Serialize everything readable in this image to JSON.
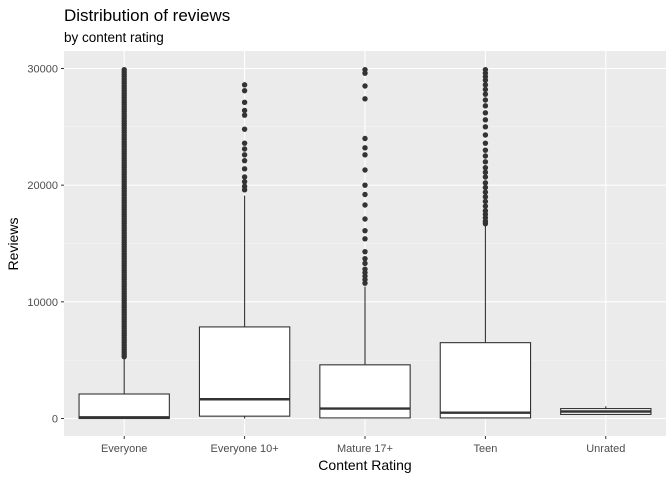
{
  "chart_data": {
    "type": "box",
    "title": "Distribution of reviews",
    "subtitle": "by content rating",
    "xlabel": "Content Rating",
    "ylabel": "Reviews",
    "ylim": [
      -1500,
      31500
    ],
    "y_ticks": [
      0,
      10000,
      20000,
      30000
    ],
    "y_tick_labels": [
      "0",
      "10000",
      "20000",
      "30000"
    ],
    "categories": [
      "Everyone",
      "Everyone 10+",
      "Mature 17+",
      "Teen",
      "Unrated"
    ],
    "grid": true,
    "legend": "none",
    "colors": {
      "panel": "#ebebeb",
      "grid_major": "#ffffff",
      "grid_minor": "#f5f5f5",
      "box_fill": "#ffffff",
      "box_line": "#333333",
      "outlier": "#333333"
    },
    "boxes": [
      {
        "category": "Everyone",
        "q1": 0,
        "median": 100,
        "q3": 2100,
        "whisker_low": 0,
        "whisker_high": 5200,
        "outliers": [
          5300,
          5500,
          5700,
          5900,
          6100,
          6300,
          6500,
          6700,
          6900,
          7100,
          7300,
          7500,
          7700,
          7900,
          8100,
          8300,
          8500,
          8700,
          8900,
          9100,
          9300,
          9500,
          9700,
          9900,
          10100,
          10300,
          10500,
          10700,
          10900,
          11100,
          11300,
          11500,
          11700,
          11900,
          12100,
          12300,
          12500,
          12700,
          12900,
          13100,
          13300,
          13500,
          13700,
          13900,
          14100,
          14300,
          14500,
          14700,
          14900,
          15100,
          15300,
          15500,
          15700,
          15900,
          16100,
          16300,
          16500,
          16700,
          16900,
          17100,
          17300,
          17500,
          17700,
          17900,
          18100,
          18300,
          18500,
          18700,
          18900,
          19100,
          19300,
          19500,
          19700,
          19900,
          20100,
          20300,
          20500,
          20700,
          20900,
          21100,
          21300,
          21500,
          21700,
          21900,
          22100,
          22300,
          22500,
          22700,
          22900,
          23100,
          23300,
          23500,
          23700,
          23900,
          24100,
          24300,
          24500,
          24700,
          24900,
          25100,
          25300,
          25500,
          25700,
          25900,
          26100,
          26300,
          26500,
          26700,
          26900,
          27100,
          27300,
          27500,
          27700,
          27900,
          28100,
          28300,
          28500,
          28700,
          28900,
          29100,
          29300,
          29500,
          29700,
          29900
        ]
      },
      {
        "category": "Everyone 10+",
        "q1": 200,
        "median": 1650,
        "q3": 7850,
        "whisker_low": 0,
        "whisker_high": 19100,
        "outliers": [
          19600,
          19900,
          20300,
          20700,
          21400,
          22100,
          22600,
          23100,
          23600,
          24800,
          26000,
          26400,
          27100,
          28100,
          28600
        ]
      },
      {
        "category": "Mature 17+",
        "q1": 50,
        "median": 850,
        "q3": 4600,
        "whisker_low": 0,
        "whisker_high": 11300,
        "outliers": [
          11600,
          11900,
          12200,
          12500,
          12800,
          13300,
          13700,
          14300,
          15400,
          16100,
          17100,
          18300,
          19200,
          20000,
          21300,
          22600,
          23200,
          24000,
          27400,
          28500,
          29600,
          29900
        ]
      },
      {
        "category": "Teen",
        "q1": 50,
        "median": 500,
        "q3": 6500,
        "whisker_low": 0,
        "whisker_high": 16500,
        "outliers": [
          16700,
          16900,
          17200,
          17500,
          17800,
          18200,
          18600,
          19000,
          19400,
          19800,
          20200,
          20700,
          21100,
          21500,
          22000,
          22500,
          23000,
          23600,
          24300,
          25000,
          25600,
          26200,
          26800,
          27300,
          27800,
          28200,
          28600,
          29000,
          29300,
          29600,
          29900
        ]
      },
      {
        "category": "Unrated",
        "q1": 350,
        "median": 600,
        "q3": 850,
        "whisker_low": 350,
        "whisker_high": 1050,
        "outliers": []
      }
    ]
  }
}
